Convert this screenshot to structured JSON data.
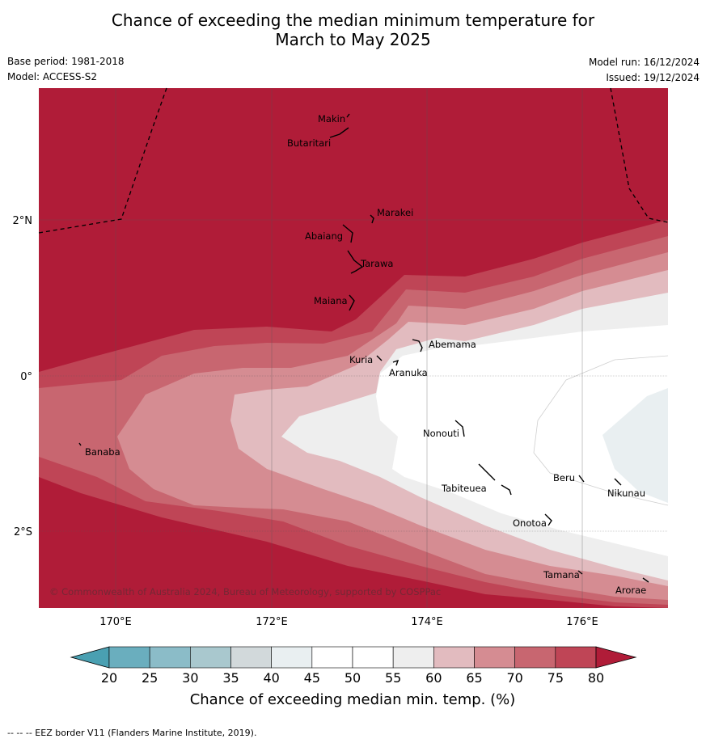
{
  "title_line1": "Chance of exceeding the median minimum temperature for",
  "title_line2": "March to May 2025",
  "base_period": "Base period: 1981-2018",
  "model": "Model: ACCESS-S2",
  "model_run": "Model run: 16/12/2024",
  "issued": "Issued: 19/12/2024",
  "lat_labels": [
    "2°N",
    "0°",
    "2°S"
  ],
  "lon_labels": [
    "170°E",
    "172°E",
    "174°E",
    "176°E"
  ],
  "islands": [
    "Makin",
    "Butaritari",
    "Marakei",
    "Abaiang",
    "Tarawa",
    "Maiana",
    "Abemama",
    "Kuria",
    "Aranuka",
    "Nonouti",
    "Banaba",
    "Tabiteuea",
    "Beru",
    "Nikunau",
    "Onotoa",
    "Tamana",
    "Arorae"
  ],
  "copyright": "© Commonwealth of Australia 2024, Bureau of Meteorology, supported by COSPPac",
  "colorbar": {
    "ticks": [
      "20",
      "25",
      "30",
      "35",
      "40",
      "45",
      "50",
      "55",
      "60",
      "65",
      "70",
      "75",
      "80"
    ],
    "colors": [
      "#6aaebe",
      "#8bbcc8",
      "#a9c8ce",
      "#d2d9db",
      "#e9eff1",
      "#ffffff",
      "#ffffff",
      "#eeeeee",
      "#e2bbbf",
      "#d58c92",
      "#c86670",
      "#bf4556"
    ],
    "under_color": "#4aa0b2",
    "over_color": "#b01c38",
    "label": "Chance of exceeding median min. temp. (%)"
  },
  "footer": "--  --  -- EEZ border V11 (Flanders Marine Institute, 2019)."
}
